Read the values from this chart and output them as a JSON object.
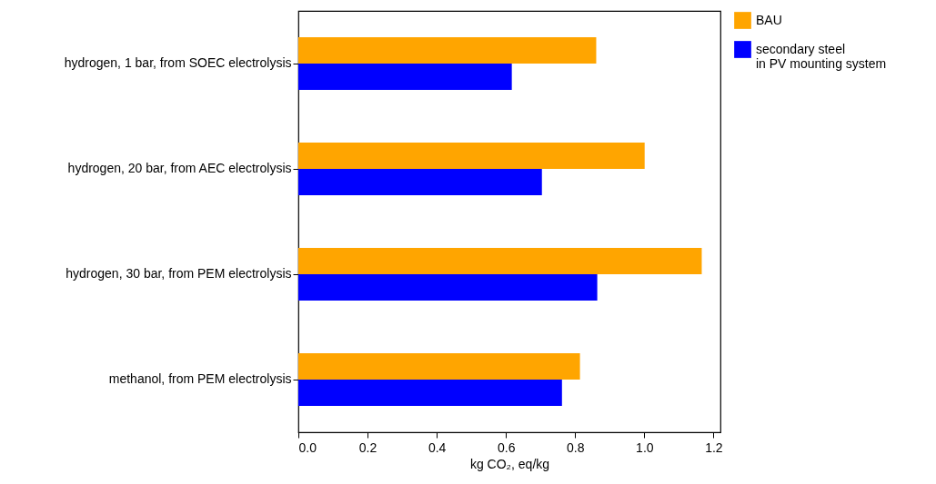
{
  "chart_data": {
    "type": "bar",
    "orientation": "horizontal",
    "xlabel": "kg CO₂, eq/kg",
    "categories": [
      "hydrogen, 1 bar, from SOEC electrolysis",
      "hydrogen, 20 bar, from AEC electrolysis",
      "hydrogen, 30 bar, from PEM electrolysis",
      "methanol, from PEM electrolysis"
    ],
    "series": [
      {
        "name": "BAU",
        "color": "#ffa500",
        "values": [
          0.861,
          1.001,
          1.166,
          0.814
        ]
      },
      {
        "name": "secondary steel\nin PV mounting system",
        "color": "#0000ff",
        "values": [
          0.617,
          0.704,
          0.864,
          0.762
        ]
      }
    ],
    "xlim": [
      0,
      1.22
    ],
    "xticks": [
      {
        "value": 0,
        "label": "0.0"
      },
      0.2,
      0.4,
      0.6,
      0.8,
      {
        "value": 1,
        "label": "1.0"
      },
      1.2
    ],
    "grid": false,
    "legend": "top right"
  }
}
